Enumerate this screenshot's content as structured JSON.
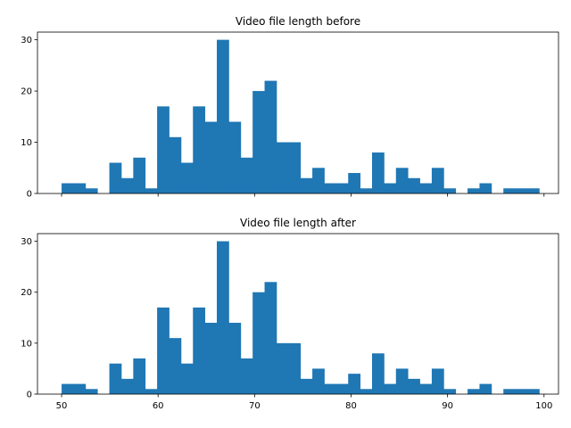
{
  "chart_data": [
    {
      "type": "bar",
      "title": "Video file length before",
      "xlabel": "",
      "ylabel": "",
      "bin_width": 1.2375,
      "bin_start": 50,
      "values": [
        2,
        2,
        1,
        0,
        6,
        3,
        7,
        1,
        17,
        11,
        6,
        17,
        14,
        30,
        14,
        7,
        20,
        22,
        10,
        10,
        3,
        5,
        2,
        2,
        4,
        1,
        8,
        2,
        5,
        3,
        2,
        5,
        1,
        0,
        1,
        2,
        0,
        1,
        1,
        1
      ],
      "xlim": [
        47.5,
        101.5
      ],
      "ylim": [
        0,
        31.5
      ],
      "xticks": [
        50,
        60,
        70,
        80,
        90,
        100
      ],
      "yticks": [
        0,
        10,
        20,
        30
      ],
      "show_xtick_labels": false,
      "color": "#1f77b4",
      "grid": false
    },
    {
      "type": "bar",
      "title": "Video file length after",
      "xlabel": "",
      "ylabel": "",
      "bin_width": 1.2375,
      "bin_start": 50,
      "values": [
        2,
        2,
        1,
        0,
        6,
        3,
        7,
        1,
        17,
        11,
        6,
        17,
        14,
        30,
        14,
        7,
        20,
        22,
        10,
        10,
        3,
        5,
        2,
        2,
        4,
        1,
        8,
        2,
        5,
        3,
        2,
        5,
        1,
        0,
        1,
        2,
        0,
        1,
        1,
        1
      ],
      "xlim": [
        47.5,
        101.5
      ],
      "ylim": [
        0,
        31.5
      ],
      "xticks": [
        50,
        60,
        70,
        80,
        90,
        100
      ],
      "yticks": [
        0,
        10,
        20,
        30
      ],
      "show_xtick_labels": true,
      "color": "#1f77b4",
      "grid": false
    }
  ]
}
